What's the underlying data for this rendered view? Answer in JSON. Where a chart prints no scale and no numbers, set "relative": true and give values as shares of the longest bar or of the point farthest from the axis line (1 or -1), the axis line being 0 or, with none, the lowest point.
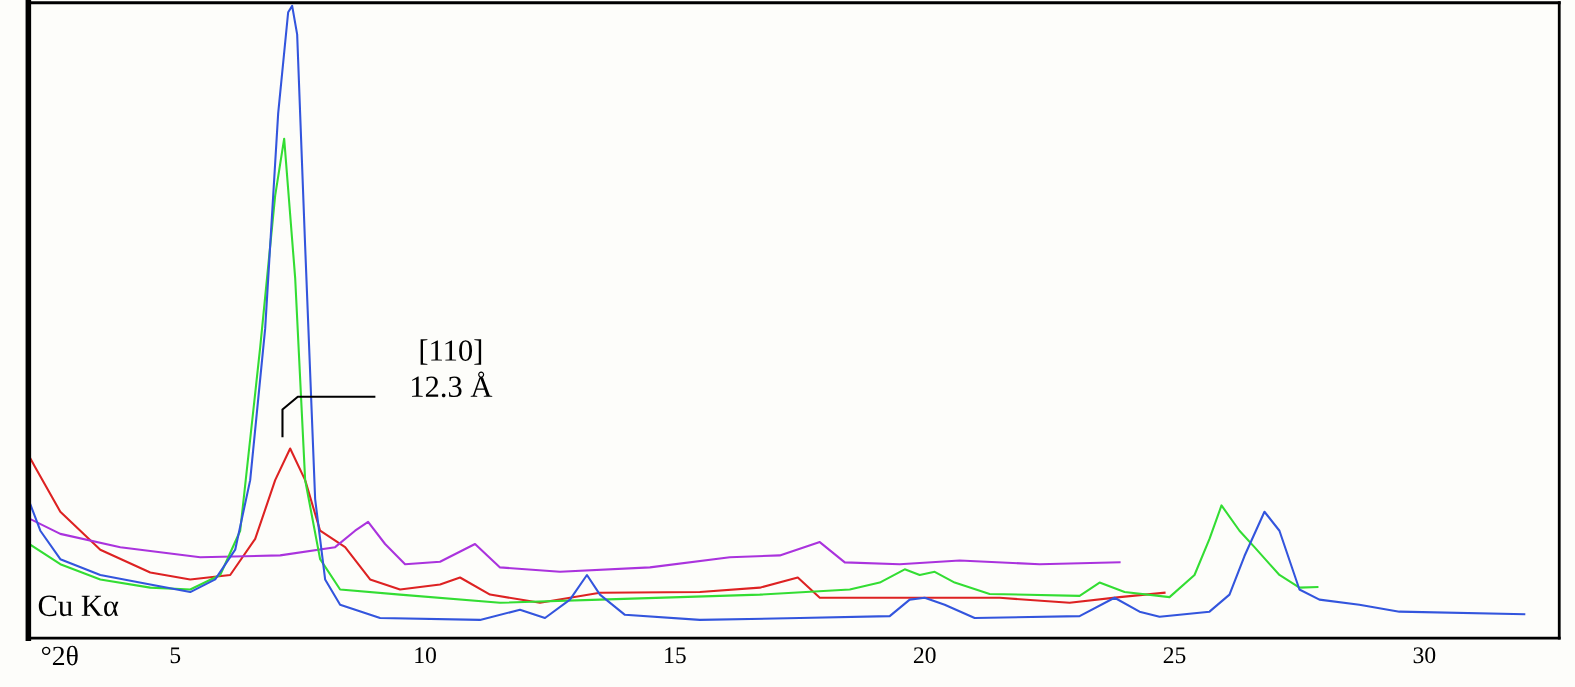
{
  "chart_data": {
    "type": "line",
    "relative": true,
    "xlabel": "°2θ",
    "xlim": [
      2.06,
      32.7
    ],
    "xticks": [
      5,
      10,
      15,
      20,
      25,
      30
    ],
    "grid": false,
    "legend": false,
    "marker": "none",
    "line_style": "solid",
    "annotations": [
      "[110]\n12.3 Å",
      "Cu Kα"
    ],
    "series": [
      {
        "color": "#dd2222",
        "x": [
          2.06,
          2.2,
          2.7,
          3.5,
          4.5,
          5.3,
          6.1,
          6.6,
          7.0,
          7.3,
          7.6,
          7.9,
          8.4,
          8.9,
          9.5,
          10.3,
          10.7,
          11.3,
          12.3,
          13.5,
          15.5,
          16.7,
          17.46,
          17.9,
          19.5,
          21.5,
          22.9,
          23.9,
          24.8
        ],
        "values": [
          0.29,
          0.27,
          0.2,
          0.14,
          0.104,
          0.093,
          0.1,
          0.157,
          0.25,
          0.3,
          0.25,
          0.17,
          0.144,
          0.093,
          0.077,
          0.085,
          0.096,
          0.069,
          0.056,
          0.072,
          0.073,
          0.08,
          0.096,
          0.064,
          0.064,
          0.064,
          0.056,
          0.065,
          0.072
        ]
      },
      {
        "color": "#aa33dd",
        "x": [
          2.06,
          2.7,
          3.9,
          5.5,
          7.1,
          8.2,
          8.6,
          8.86,
          9.2,
          9.6,
          10.3,
          11.0,
          11.5,
          12.7,
          14.5,
          16.1,
          17.1,
          17.9,
          18.4,
          19.5,
          20.7,
          22.3,
          23.9
        ],
        "values": [
          0.19,
          0.165,
          0.144,
          0.128,
          0.131,
          0.144,
          0.17,
          0.184,
          0.149,
          0.117,
          0.121,
          0.149,
          0.112,
          0.105,
          0.112,
          0.128,
          0.131,
          0.152,
          0.12,
          0.117,
          0.123,
          0.117,
          0.12
        ]
      },
      {
        "color": "#33dd33",
        "x": [
          2.06,
          2.7,
          3.5,
          4.5,
          5.3,
          5.9,
          6.3,
          6.7,
          7.0,
          7.18,
          7.4,
          7.6,
          7.9,
          8.3,
          9.5,
          11.5,
          13.5,
          16.7,
          18.5,
          19.1,
          19.6,
          19.9,
          20.2,
          20.6,
          21.3,
          23.1,
          23.5,
          24.0,
          24.9,
          25.4,
          25.7,
          25.94,
          26.3,
          26.6,
          27.1,
          27.5,
          27.86
        ],
        "values": [
          0.15,
          0.117,
          0.093,
          0.08,
          0.077,
          0.1,
          0.17,
          0.46,
          0.7,
          0.79,
          0.57,
          0.25,
          0.125,
          0.077,
          0.069,
          0.056,
          0.061,
          0.069,
          0.077,
          0.088,
          0.109,
          0.1,
          0.105,
          0.088,
          0.07,
          0.067,
          0.088,
          0.073,
          0.065,
          0.1,
          0.157,
          0.21,
          0.17,
          0.144,
          0.1,
          0.08,
          0.081
        ]
      },
      {
        "color": "#3355dd",
        "x": [
          2.06,
          2.3,
          2.7,
          3.5,
          4.5,
          5.3,
          5.8,
          6.2,
          6.5,
          6.8,
          7.06,
          7.26,
          7.34,
          7.44,
          7.6,
          7.8,
          8.0,
          8.3,
          9.1,
          11.1,
          11.9,
          12.4,
          12.9,
          13.24,
          13.5,
          14.0,
          15.5,
          17.5,
          19.3,
          19.7,
          20.0,
          20.4,
          21.0,
          23.1,
          23.8,
          24.3,
          24.7,
          25.7,
          26.1,
          26.4,
          26.8,
          27.1,
          27.5,
          27.9,
          28.7,
          29.5,
          32.0
        ],
        "values": [
          0.22,
          0.17,
          0.125,
          0.1,
          0.085,
          0.073,
          0.093,
          0.14,
          0.25,
          0.49,
          0.83,
          0.99,
          1.0,
          0.955,
          0.62,
          0.22,
          0.093,
          0.053,
          0.032,
          0.029,
          0.045,
          0.032,
          0.061,
          0.1,
          0.069,
          0.037,
          0.029,
          0.032,
          0.035,
          0.061,
          0.064,
          0.053,
          0.032,
          0.035,
          0.064,
          0.042,
          0.034,
          0.042,
          0.069,
          0.13,
          0.2,
          0.17,
          0.077,
          0.061,
          0.053,
          0.042,
          0.038
        ]
      }
    ]
  }
}
